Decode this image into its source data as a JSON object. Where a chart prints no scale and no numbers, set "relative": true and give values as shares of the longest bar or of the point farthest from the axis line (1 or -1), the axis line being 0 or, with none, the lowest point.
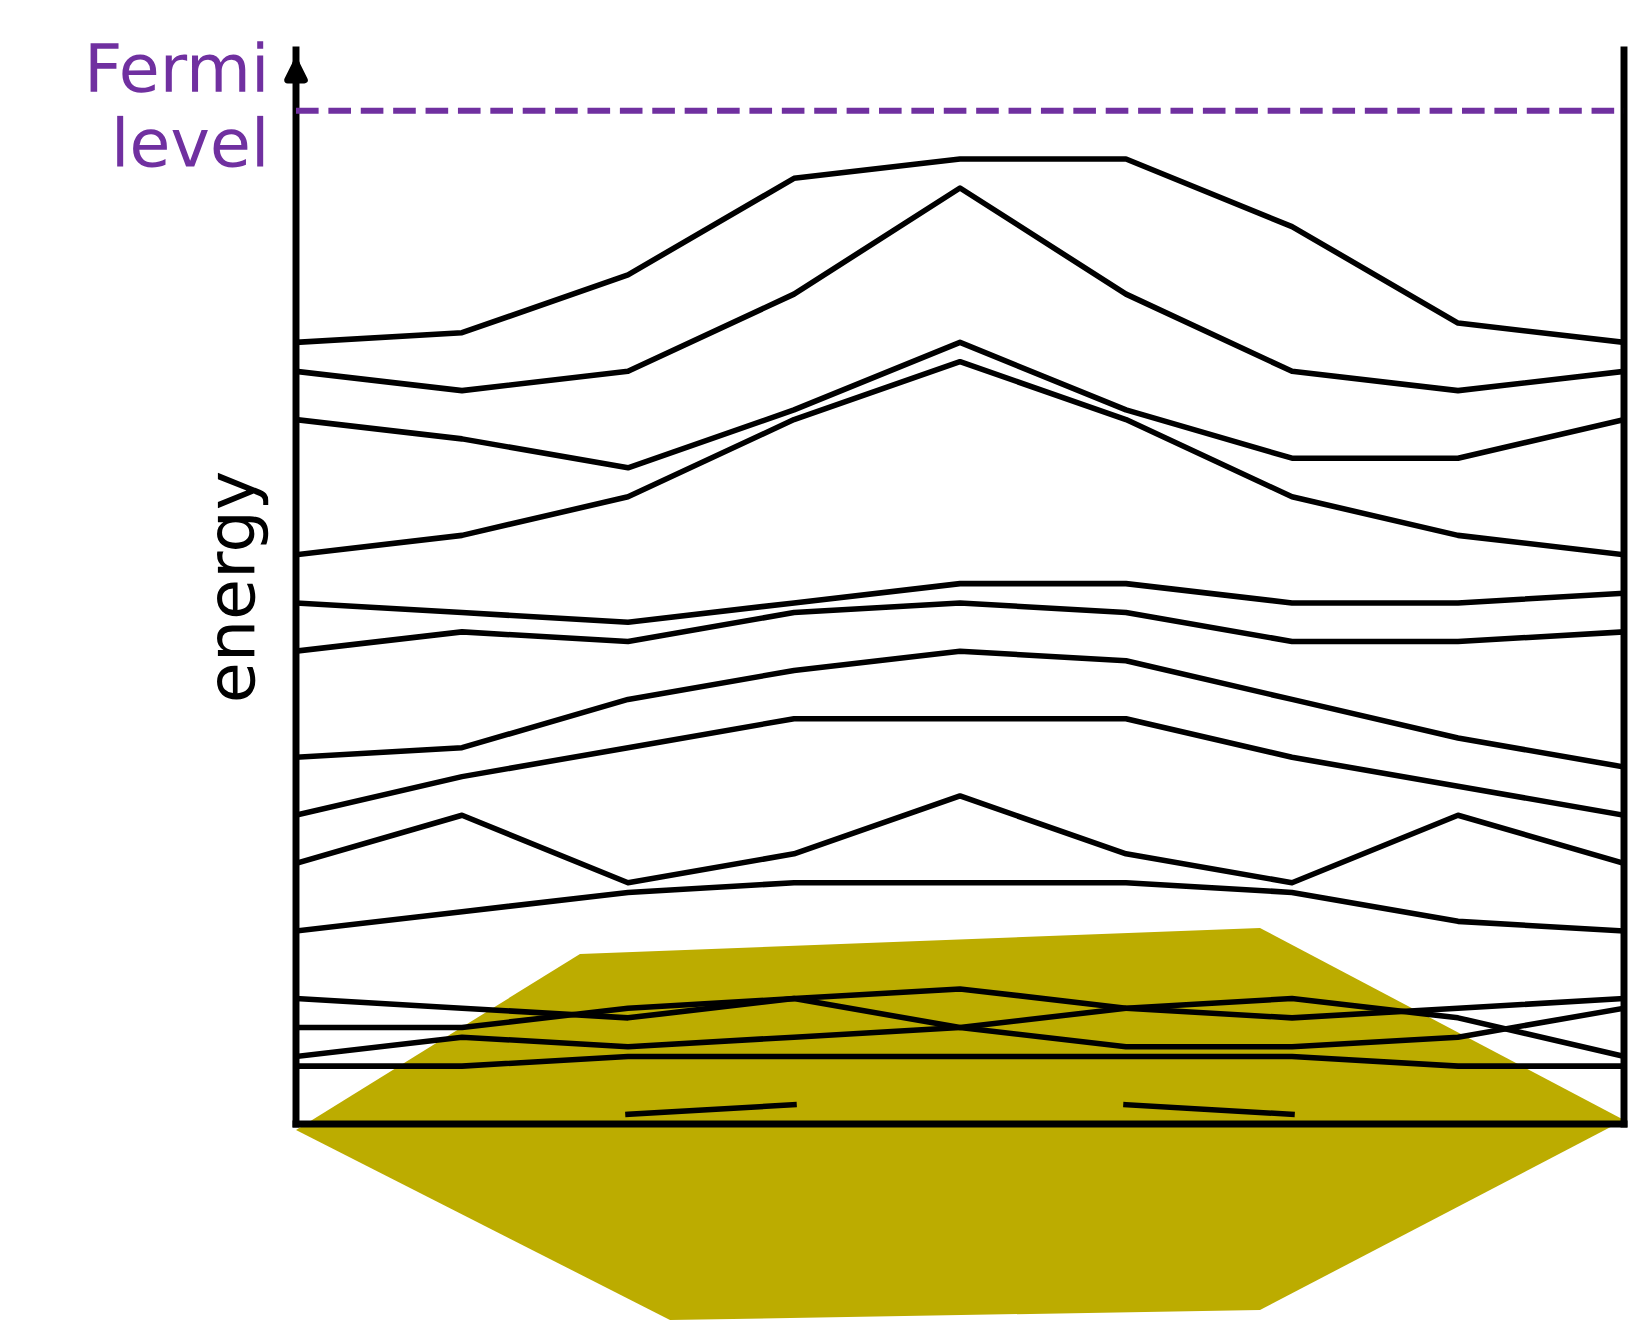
{
  "chart_data": {
    "type": "line",
    "relative": true,
    "ylabel": "energy",
    "line_style": "solid",
    "marker": "none",
    "grid": false,
    "legend": false,
    "categories": [
      null,
      null,
      null,
      null,
      null,
      null,
      null,
      null,
      null
    ],
    "series": [
      {
        "color": "#000000",
        "values": [
          0.81,
          0.82,
          0.88,
          0.98,
          1.0,
          1.0,
          0.93,
          0.83,
          0.81
        ]
      },
      {
        "color": "#000000",
        "values": [
          0.78,
          0.76,
          0.78,
          0.86,
          0.97,
          0.86,
          0.78,
          0.76,
          0.78
        ]
      },
      {
        "color": "#000000",
        "values": [
          0.73,
          0.71,
          0.68,
          0.74,
          0.81,
          0.74,
          0.69,
          0.69,
          0.73
        ]
      },
      {
        "color": "#000000",
        "values": [
          0.59,
          0.61,
          0.65,
          0.73,
          0.79,
          0.73,
          0.65,
          0.61,
          0.59
        ]
      },
      {
        "color": "#000000",
        "values": [
          0.54,
          0.53,
          0.52,
          0.54,
          0.56,
          0.56,
          0.54,
          0.54,
          0.55
        ]
      },
      {
        "color": "#000000",
        "values": [
          0.49,
          0.51,
          0.5,
          0.53,
          0.54,
          0.53,
          0.5,
          0.5,
          0.51
        ]
      },
      {
        "color": "#000000",
        "values": [
          0.38,
          0.39,
          0.44,
          0.47,
          0.49,
          0.48,
          0.44,
          0.4,
          0.37
        ]
      },
      {
        "color": "#000000",
        "values": [
          0.32,
          0.36,
          0.39,
          0.42,
          0.42,
          0.42,
          0.38,
          0.35,
          0.32
        ]
      },
      {
        "color": "#000000",
        "values": [
          0.27,
          0.32,
          0.25,
          0.28,
          0.34,
          0.28,
          0.25,
          0.32,
          0.27
        ]
      },
      {
        "color": "#000000",
        "values": [
          0.2,
          0.22,
          0.24,
          0.25,
          0.25,
          0.25,
          0.24,
          0.21,
          0.2
        ]
      },
      {
        "color": "#000000",
        "values": [
          0.13,
          0.12,
          0.11,
          0.13,
          0.14,
          0.12,
          0.11,
          0.12,
          0.13
        ]
      },
      {
        "color": "#000000",
        "values": [
          0.1,
          0.1,
          0.12,
          0.13,
          0.1,
          0.08,
          0.08,
          0.09,
          0.12
        ]
      },
      {
        "color": "#000000",
        "values": [
          0.07,
          0.09,
          0.08,
          0.09,
          0.1,
          0.12,
          0.13,
          0.11,
          0.07
        ]
      },
      {
        "color": "#000000",
        "values": [
          0.06,
          0.06,
          0.07,
          0.07,
          0.07,
          0.07,
          0.07,
          0.06,
          0.06
        ]
      },
      {
        "color": "#000000",
        "values": [
          null,
          null,
          0.01,
          0.02,
          null,
          null,
          null,
          null,
          null
        ]
      },
      {
        "color": "#000000",
        "values": [
          null,
          null,
          null,
          null,
          null,
          0.02,
          0.01,
          null,
          null
        ]
      }
    ],
    "ref_lines": [
      {
        "axis": "y",
        "value": 1.05,
        "label": "Fermi level",
        "color": "#7030a0",
        "line_style": "dashed"
      }
    ]
  }
}
